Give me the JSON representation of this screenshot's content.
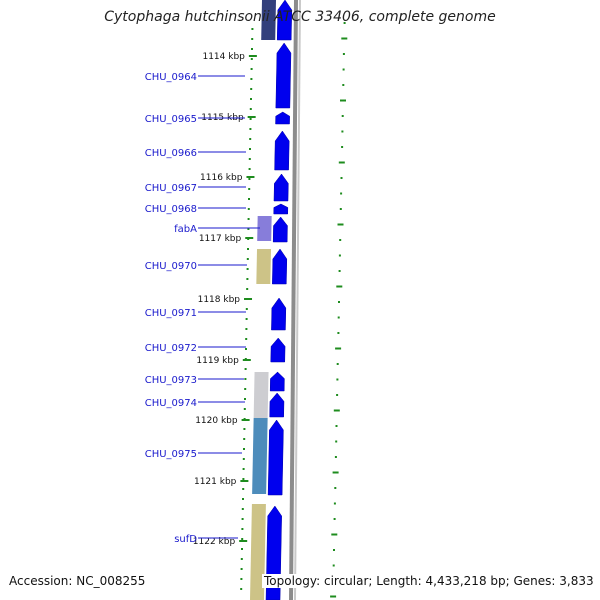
{
  "title": "Cytophaga hutchinsonii ATCC 33406, complete genome",
  "accession": "Accession: NC_008255",
  "topology": "Topology: circular; Length: 4,433,218 bp; Genes: 3,833",
  "colors": {
    "label": "#1a1acc",
    "cds": "#0000ee",
    "tick": "#1e8c1e",
    "backbone": "#8c8c8c",
    "fabA": "#7a6fd6",
    "khaki": "#c8bd7a",
    "grey": "#c8c8cc",
    "steel": "#3a7fb4"
  },
  "ticks": [
    {
      "label": "1114 kbp"
    },
    {
      "label": "1115 kbp"
    },
    {
      "label": "1116 kbp"
    },
    {
      "label": "1117 kbp"
    },
    {
      "label": "1118 kbp"
    },
    {
      "label": "1119 kbp"
    },
    {
      "label": "1120 kbp"
    },
    {
      "label": "1121 kbp"
    },
    {
      "label": "1122 kbp"
    }
  ],
  "genes": [
    {
      "name": "CHU_0964"
    },
    {
      "name": "CHU_0965"
    },
    {
      "name": "CHU_0966"
    },
    {
      "name": "CHU_0967"
    },
    {
      "name": "CHU_0968"
    },
    {
      "name": "fabA"
    },
    {
      "name": "CHU_0970"
    },
    {
      "name": "CHU_0971"
    },
    {
      "name": "CHU_0972"
    },
    {
      "name": "CHU_0973"
    },
    {
      "name": "CHU_0974"
    },
    {
      "name": "CHU_0975"
    },
    {
      "name": "sufD"
    }
  ]
}
